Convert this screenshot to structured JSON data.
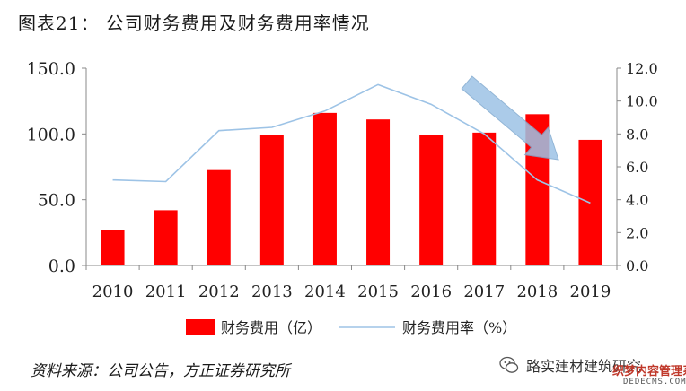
{
  "title": "图表21：  公司财务费用及财务费用率情况",
  "source": "资料来源：公司公告，方正证券研究所",
  "watermark": {
    "account": "路实建材建筑研究",
    "overlay": "织梦内容管理系统",
    "url": "DEDECMS.COM"
  },
  "colors": {
    "bar": "#ff0000",
    "line": "#9dc3e6",
    "arrow": "#9dc3e6",
    "axis": "#888888"
  },
  "chart_data": {
    "type": "bar",
    "categories": [
      "2010",
      "2011",
      "2012",
      "2013",
      "2014",
      "2015",
      "2016",
      "2017",
      "2018",
      "2019"
    ],
    "series": [
      {
        "name": "财务费用（亿）",
        "type": "bar",
        "axis": "left",
        "values": [
          27.0,
          42.0,
          72.5,
          99.5,
          116.0,
          111.0,
          99.5,
          101.0,
          115.0,
          95.5
        ]
      },
      {
        "name": "财务费用率（%）",
        "type": "line",
        "axis": "right",
        "values": [
          5.2,
          5.1,
          8.2,
          8.4,
          9.4,
          11.0,
          9.8,
          8.0,
          5.2,
          3.8
        ]
      }
    ],
    "ylim_left": [
      0,
      150
    ],
    "yticks_left": [
      "0.0",
      "50.0",
      "100.0",
      "150.0"
    ],
    "ylim_right": [
      0,
      12
    ],
    "yticks_right": [
      "0.0",
      "2.0",
      "4.0",
      "6.0",
      "8.0",
      "10.0",
      "12.0"
    ],
    "legend_position": "bottom",
    "annotation": "downward arrow over 2017–2019 indicating declining trend",
    "grid": false
  }
}
